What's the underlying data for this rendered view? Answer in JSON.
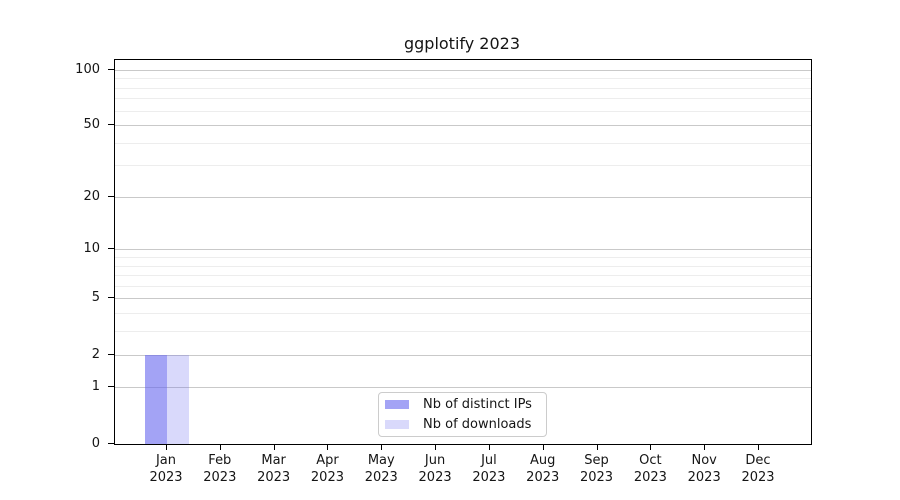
{
  "title": "ggplotify 2023",
  "chart_data": {
    "type": "bar",
    "title": "ggplotify 2023",
    "xlabel": "",
    "ylabel": "",
    "categories": [
      "Jan 2023",
      "Feb 2023",
      "Mar 2023",
      "Apr 2023",
      "May 2023",
      "Jun 2023",
      "Jul 2023",
      "Aug 2023",
      "Sep 2023",
      "Oct 2023",
      "Nov 2023",
      "Dec 2023"
    ],
    "x_tick_line1": [
      "Jan",
      "Feb",
      "Mar",
      "Apr",
      "May",
      "Jun",
      "Jul",
      "Aug",
      "Sep",
      "Oct",
      "Nov",
      "Dec"
    ],
    "x_tick_line2": [
      "2023",
      "2023",
      "2023",
      "2023",
      "2023",
      "2023",
      "2023",
      "2023",
      "2023",
      "2023",
      "2023",
      "2023"
    ],
    "series": [
      {
        "name": "Nb of distinct IPs",
        "color": "rgba(102,102,238,0.60)",
        "values": [
          2,
          0,
          0,
          0,
          0,
          0,
          0,
          0,
          0,
          0,
          0,
          0
        ]
      },
      {
        "name": "Nb of downloads",
        "color": "rgba(102,102,238,0.25)",
        "values": [
          2,
          0,
          0,
          0,
          0,
          0,
          0,
          0,
          0,
          0,
          0,
          0
        ]
      }
    ],
    "y_scale": "log1p",
    "ylim": [
      0,
      113.5
    ],
    "y_major_ticks": [
      0,
      1,
      2,
      5,
      10,
      20,
      50,
      100
    ],
    "y_minor_gridlines": [
      3,
      4,
      6,
      7,
      8,
      9,
      30,
      40,
      60,
      70,
      80,
      90
    ],
    "grid": "horizontal",
    "legend_position": "lower center",
    "colors": {
      "major_grid": "#c9c9c9",
      "minor_grid": "#ededed",
      "spine": "#000000",
      "text": "#151515"
    }
  }
}
